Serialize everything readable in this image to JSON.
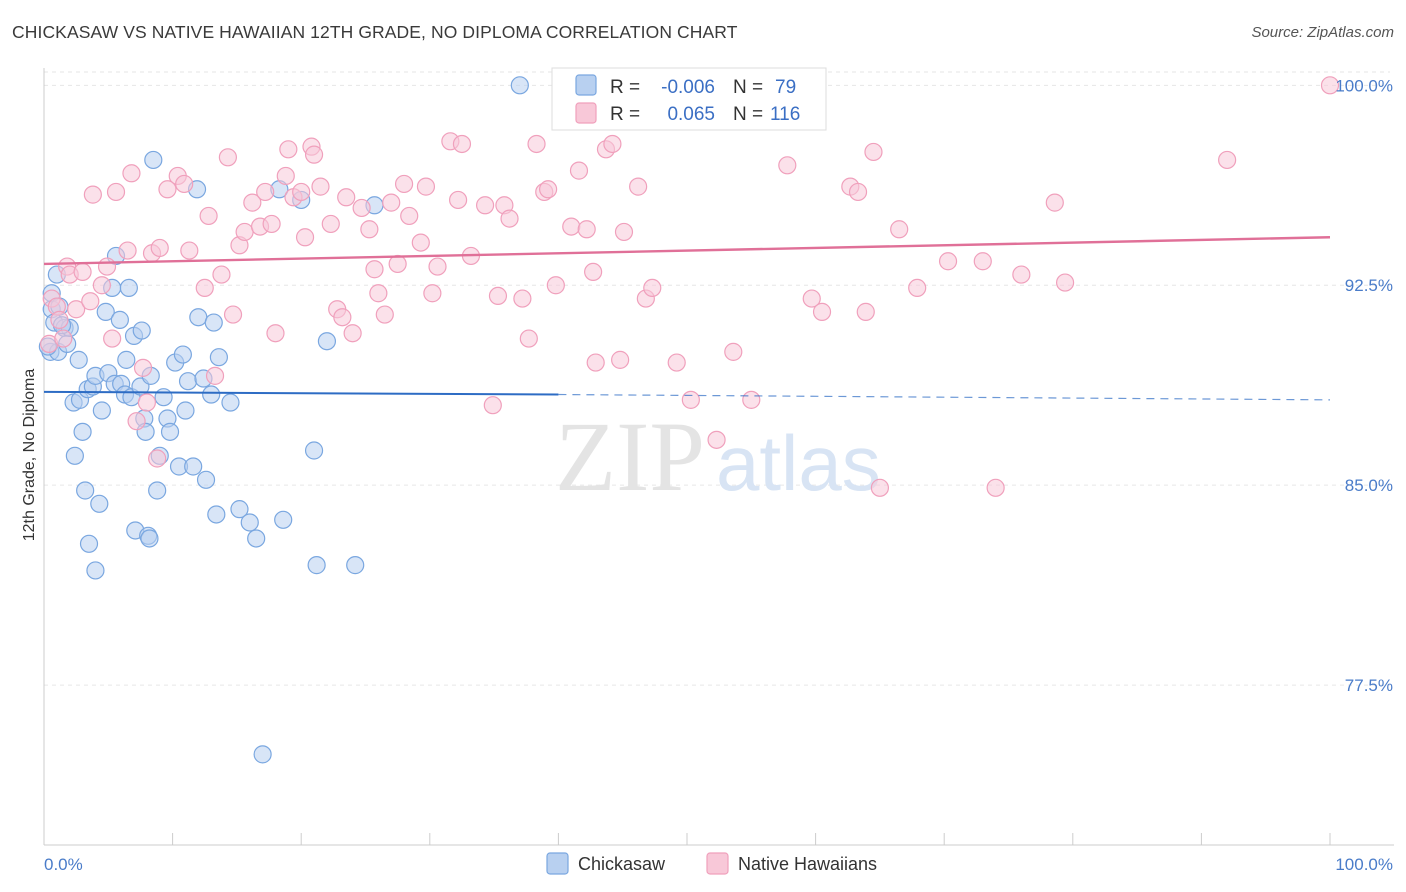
{
  "title": "CHICKASAW VS NATIVE HAWAIIAN 12TH GRADE, NO DIPLOMA CORRELATION CHART",
  "source": "Source: ZipAtlas.com",
  "watermark": {
    "zip": "ZIP",
    "atlas": "atlas"
  },
  "chart_data": {
    "type": "scatter",
    "xlabel": "",
    "ylabel": "12th Grade, No Diploma",
    "xlim": [
      0,
      100
    ],
    "ylim": [
      71.5,
      100.8
    ],
    "y_ticks": [
      77.5,
      85.0,
      92.5,
      100.0
    ],
    "y_tick_labels": [
      "77.5%",
      "85.0%",
      "92.5%",
      "100.0%"
    ],
    "x_tick_labels": [
      "0.0%",
      "100.0%"
    ],
    "grid": true,
    "legend_position": "top-center",
    "bottom_legend_position": "bottom-center",
    "series": [
      {
        "name": "Chickasaw",
        "color": "#7aa7e0",
        "fill": "#b8d0f0",
        "line_color": "#2d6cc4",
        "r_label": "R =",
        "r_value": "-0.006",
        "n_label": "N =",
        "n_value": "79",
        "trend": {
          "x0": 0,
          "y0": 88.5,
          "x1": 40,
          "y1": 88.4,
          "dashed_to_x": 100,
          "dashed_to_y": 88.2
        },
        "points": [
          [
            0.5,
            90.0
          ],
          [
            0.6,
            91.6
          ],
          [
            0.6,
            92.2
          ],
          [
            0.8,
            91.1
          ],
          [
            1.0,
            92.9
          ],
          [
            1.1,
            90.0
          ],
          [
            1.2,
            91.7
          ],
          [
            1.6,
            90.9
          ],
          [
            1.8,
            90.3
          ],
          [
            2.0,
            90.9
          ],
          [
            2.3,
            88.1
          ],
          [
            2.4,
            86.1
          ],
          [
            2.7,
            89.7
          ],
          [
            2.8,
            88.2
          ],
          [
            3.0,
            87.0
          ],
          [
            3.2,
            84.8
          ],
          [
            3.4,
            88.6
          ],
          [
            3.5,
            82.8
          ],
          [
            3.8,
            88.7
          ],
          [
            4.0,
            89.1
          ],
          [
            4.0,
            81.8
          ],
          [
            4.3,
            84.3
          ],
          [
            4.5,
            87.8
          ],
          [
            4.8,
            91.5
          ],
          [
            5.0,
            89.2
          ],
          [
            5.3,
            92.4
          ],
          [
            5.5,
            88.8
          ],
          [
            5.6,
            93.6
          ],
          [
            5.9,
            91.2
          ],
          [
            6.0,
            88.8
          ],
          [
            6.3,
            88.4
          ],
          [
            6.4,
            89.7
          ],
          [
            6.6,
            92.4
          ],
          [
            6.8,
            88.3
          ],
          [
            7.0,
            90.6
          ],
          [
            7.1,
            83.3
          ],
          [
            7.5,
            88.7
          ],
          [
            7.6,
            90.8
          ],
          [
            7.8,
            87.5
          ],
          [
            7.9,
            87.0
          ],
          [
            8.1,
            83.1
          ],
          [
            8.2,
            83.0
          ],
          [
            8.3,
            89.1
          ],
          [
            8.5,
            97.2
          ],
          [
            8.8,
            84.8
          ],
          [
            9.0,
            86.1
          ],
          [
            9.3,
            88.3
          ],
          [
            9.6,
            87.5
          ],
          [
            9.8,
            87.0
          ],
          [
            10.2,
            89.6
          ],
          [
            10.5,
            85.7
          ],
          [
            10.8,
            89.9
          ],
          [
            11.0,
            87.8
          ],
          [
            11.2,
            88.9
          ],
          [
            11.6,
            85.7
          ],
          [
            11.9,
            96.1
          ],
          [
            12.0,
            91.3
          ],
          [
            12.4,
            89.0
          ],
          [
            12.6,
            85.2
          ],
          [
            13.0,
            88.4
          ],
          [
            13.2,
            91.1
          ],
          [
            13.4,
            83.9
          ],
          [
            13.6,
            89.8
          ],
          [
            14.5,
            88.1
          ],
          [
            15.2,
            84.1
          ],
          [
            16.0,
            83.6
          ],
          [
            16.5,
            83.0
          ],
          [
            17.0,
            74.9
          ],
          [
            18.3,
            96.1
          ],
          [
            18.6,
            83.7
          ],
          [
            20.0,
            95.7
          ],
          [
            21.0,
            86.3
          ],
          [
            21.2,
            82.0
          ],
          [
            22.0,
            90.4
          ],
          [
            24.2,
            82.0
          ],
          [
            25.7,
            95.5
          ],
          [
            37.0,
            100.0
          ],
          [
            0.3,
            90.2
          ],
          [
            1.4,
            91.0
          ]
        ]
      },
      {
        "name": "Native Hawaiians",
        "color": "#f0a0bc",
        "fill": "#f8c8d8",
        "line_color": "#e07098",
        "r_label": "R =",
        "r_value": "0.065",
        "n_label": "N =",
        "n_value": "116",
        "trend": {
          "x0": 0,
          "y0": 93.3,
          "x1": 100,
          "y1": 94.3
        },
        "points": [
          [
            0.4,
            90.3
          ],
          [
            0.6,
            92.0
          ],
          [
            1.0,
            91.7
          ],
          [
            1.2,
            91.2
          ],
          [
            1.5,
            90.5
          ],
          [
            1.8,
            93.2
          ],
          [
            2.0,
            92.9
          ],
          [
            2.5,
            91.6
          ],
          [
            3.0,
            93.0
          ],
          [
            3.6,
            91.9
          ],
          [
            3.8,
            95.9
          ],
          [
            4.5,
            92.5
          ],
          [
            4.9,
            93.2
          ],
          [
            5.3,
            90.5
          ],
          [
            5.6,
            96.0
          ],
          [
            6.5,
            93.8
          ],
          [
            6.8,
            96.7
          ],
          [
            7.2,
            87.4
          ],
          [
            7.7,
            89.4
          ],
          [
            8.0,
            88.1
          ],
          [
            8.4,
            93.7
          ],
          [
            8.8,
            86.0
          ],
          [
            9.0,
            93.9
          ],
          [
            9.6,
            96.1
          ],
          [
            10.4,
            96.6
          ],
          [
            10.9,
            96.3
          ],
          [
            11.3,
            93.8
          ],
          [
            12.5,
            92.4
          ],
          [
            12.8,
            95.1
          ],
          [
            13.3,
            89.1
          ],
          [
            13.8,
            92.9
          ],
          [
            14.3,
            97.3
          ],
          [
            14.7,
            91.4
          ],
          [
            15.2,
            94.0
          ],
          [
            15.6,
            94.5
          ],
          [
            16.2,
            95.6
          ],
          [
            16.8,
            94.7
          ],
          [
            17.2,
            96.0
          ],
          [
            17.7,
            94.8
          ],
          [
            18.0,
            90.7
          ],
          [
            18.8,
            96.6
          ],
          [
            19.0,
            97.6
          ],
          [
            19.4,
            95.8
          ],
          [
            20.0,
            96.0
          ],
          [
            20.3,
            94.3
          ],
          [
            20.8,
            97.7
          ],
          [
            21.0,
            97.4
          ],
          [
            21.5,
            96.2
          ],
          [
            22.3,
            94.8
          ],
          [
            22.8,
            91.6
          ],
          [
            23.2,
            91.3
          ],
          [
            23.5,
            95.8
          ],
          [
            24.0,
            90.7
          ],
          [
            24.7,
            95.4
          ],
          [
            25.3,
            94.6
          ],
          [
            25.7,
            93.1
          ],
          [
            26.0,
            92.2
          ],
          [
            26.5,
            91.4
          ],
          [
            27.0,
            95.6
          ],
          [
            27.5,
            93.3
          ],
          [
            28.0,
            96.3
          ],
          [
            28.4,
            95.1
          ],
          [
            29.3,
            94.1
          ],
          [
            29.7,
            96.2
          ],
          [
            30.2,
            92.2
          ],
          [
            30.6,
            93.2
          ],
          [
            31.6,
            97.9
          ],
          [
            32.2,
            95.7
          ],
          [
            32.5,
            97.8
          ],
          [
            33.2,
            93.6
          ],
          [
            34.3,
            95.5
          ],
          [
            34.9,
            88.0
          ],
          [
            35.3,
            92.1
          ],
          [
            35.8,
            95.5
          ],
          [
            36.2,
            95.0
          ],
          [
            37.2,
            92.0
          ],
          [
            37.7,
            90.5
          ],
          [
            38.3,
            97.8
          ],
          [
            38.9,
            96.0
          ],
          [
            39.2,
            96.1
          ],
          [
            39.8,
            92.5
          ],
          [
            41.0,
            94.7
          ],
          [
            41.6,
            96.8
          ],
          [
            42.2,
            94.6
          ],
          [
            42.7,
            93.0
          ],
          [
            42.9,
            89.6
          ],
          [
            43.7,
            97.6
          ],
          [
            44.2,
            97.8
          ],
          [
            44.8,
            89.7
          ],
          [
            45.1,
            94.5
          ],
          [
            46.2,
            96.2
          ],
          [
            46.8,
            92.0
          ],
          [
            47.3,
            92.4
          ],
          [
            49.2,
            89.6
          ],
          [
            50.3,
            88.2
          ],
          [
            52.3,
            86.7
          ],
          [
            53.6,
            90.0
          ],
          [
            55.0,
            88.2
          ],
          [
            57.8,
            97.0
          ],
          [
            59.7,
            92.0
          ],
          [
            60.5,
            91.5
          ],
          [
            62.7,
            96.2
          ],
          [
            63.3,
            96.0
          ],
          [
            63.9,
            91.5
          ],
          [
            64.5,
            97.5
          ],
          [
            65.0,
            84.9
          ],
          [
            66.5,
            94.6
          ],
          [
            67.9,
            92.4
          ],
          [
            70.3,
            93.4
          ],
          [
            73.0,
            93.4
          ],
          [
            74.0,
            84.9
          ],
          [
            76.0,
            92.9
          ],
          [
            78.6,
            95.6
          ],
          [
            79.4,
            92.6
          ],
          [
            92.0,
            97.2
          ],
          [
            100.0,
            100.0
          ]
        ]
      }
    ]
  }
}
